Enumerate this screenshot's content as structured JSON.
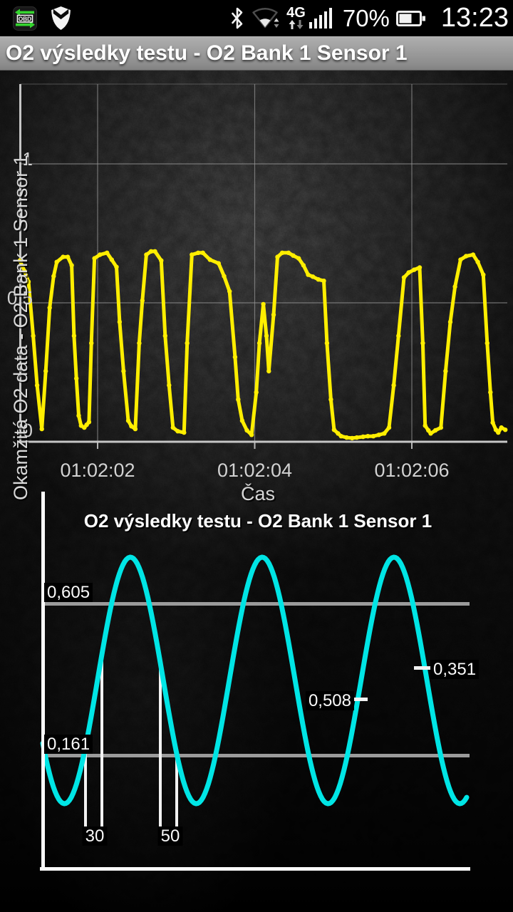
{
  "status_bar": {
    "time": "13:23",
    "battery_percent": "70%",
    "network_label": "4G",
    "icons": {
      "obd": "OBD",
      "shield": "shield",
      "bluetooth": "bluetooth",
      "wifi": "wifi-off-with-arrows",
      "signal": "signal-strength-5",
      "battery": "battery-70"
    }
  },
  "title_bar": {
    "title": "O2 výsledky testu - O2 Bank 1 Sensor 1"
  },
  "chart_data": [
    {
      "id": "instant-o2-chart",
      "type": "line",
      "title": "",
      "xlabel": "Čas",
      "ylabel": "Okamžitá O2 data - O2 Bank 1 Sensor 1",
      "x_ticks": [
        {
          "label": "01:02:02",
          "seconds": 2
        },
        {
          "label": "01:02:04",
          "seconds": 4
        },
        {
          "label": "01:02:06",
          "seconds": 6
        }
      ],
      "y_ticks": [
        {
          "label": "0",
          "value": 0
        },
        {
          "label": "0.5",
          "value": 0.5
        },
        {
          "label": "1",
          "value": 1
        }
      ],
      "xlim_seconds": [
        1.01,
        7.19
      ],
      "ylim": [
        0,
        1.29
      ],
      "grid": true,
      "series": [
        {
          "name": "Okamžitá O2 data - O2 Bank 1 Sensor 1",
          "color": "#ffee00",
          "marker": "circle",
          "points_t_v": [
            [
              1.01,
              0.652
            ],
            [
              1.07,
              0.614
            ],
            [
              1.12,
              0.576
            ],
            [
              1.18,
              0.381
            ],
            [
              1.23,
              0.203
            ],
            [
              1.29,
              0.046
            ],
            [
              1.34,
              0.254
            ],
            [
              1.39,
              0.482
            ],
            [
              1.44,
              0.596
            ],
            [
              1.48,
              0.647
            ],
            [
              1.56,
              0.665
            ],
            [
              1.62,
              0.665
            ],
            [
              1.67,
              0.635
            ],
            [
              1.7,
              0.381
            ],
            [
              1.73,
              0.228
            ],
            [
              1.76,
              0.094
            ],
            [
              1.79,
              0.058
            ],
            [
              1.83,
              0.051
            ],
            [
              1.86,
              0.061
            ],
            [
              1.89,
              0.071
            ],
            [
              1.92,
              0.355
            ],
            [
              1.96,
              0.66
            ],
            [
              2.03,
              0.673
            ],
            [
              2.12,
              0.68
            ],
            [
              2.18,
              0.655
            ],
            [
              2.24,
              0.629
            ],
            [
              2.28,
              0.431
            ],
            [
              2.33,
              0.254
            ],
            [
              2.39,
              0.076
            ],
            [
              2.43,
              0.056
            ],
            [
              2.48,
              0.046
            ],
            [
              2.53,
              0.355
            ],
            [
              2.57,
              0.508
            ],
            [
              2.62,
              0.673
            ],
            [
              2.68,
              0.685
            ],
            [
              2.73,
              0.685
            ],
            [
              2.81,
              0.652
            ],
            [
              2.86,
              0.381
            ],
            [
              2.91,
              0.203
            ],
            [
              2.96,
              0.051
            ],
            [
              3.02,
              0.038
            ],
            [
              3.1,
              0.033
            ],
            [
              3.14,
              0.355
            ],
            [
              3.2,
              0.673
            ],
            [
              3.28,
              0.68
            ],
            [
              3.34,
              0.68
            ],
            [
              3.43,
              0.655
            ],
            [
              3.54,
              0.642
            ],
            [
              3.61,
              0.596
            ],
            [
              3.68,
              0.541
            ],
            [
              3.75,
              0.305
            ],
            [
              3.79,
              0.152
            ],
            [
              3.84,
              0.076
            ],
            [
              3.9,
              0.041
            ],
            [
              3.96,
              0.025
            ],
            [
              4.02,
              0.178
            ],
            [
              4.06,
              0.355
            ],
            [
              4.11,
              0.495
            ],
            [
              4.15,
              0.381
            ],
            [
              4.18,
              0.254
            ],
            [
              4.24,
              0.457
            ],
            [
              4.29,
              0.665
            ],
            [
              4.35,
              0.68
            ],
            [
              4.43,
              0.68
            ],
            [
              4.49,
              0.67
            ],
            [
              4.56,
              0.66
            ],
            [
              4.62,
              0.635
            ],
            [
              4.68,
              0.601
            ],
            [
              4.74,
              0.594
            ],
            [
              4.81,
              0.584
            ],
            [
              4.88,
              0.579
            ],
            [
              4.92,
              0.355
            ],
            [
              4.97,
              0.152
            ],
            [
              5.01,
              0.043
            ],
            [
              5.06,
              0.03
            ],
            [
              5.1,
              0.02
            ],
            [
              5.17,
              0.015
            ],
            [
              5.24,
              0.013
            ],
            [
              5.3,
              0.015
            ],
            [
              5.38,
              0.018
            ],
            [
              5.44,
              0.02
            ],
            [
              5.51,
              0.02
            ],
            [
              5.58,
              0.025
            ],
            [
              5.65,
              0.03
            ],
            [
              5.71,
              0.051
            ],
            [
              5.77,
              0.203
            ],
            [
              5.83,
              0.381
            ],
            [
              5.9,
              0.591
            ],
            [
              5.96,
              0.609
            ],
            [
              6.03,
              0.619
            ],
            [
              6.1,
              0.627
            ],
            [
              6.14,
              0.355
            ],
            [
              6.17,
              0.058
            ],
            [
              6.21,
              0.041
            ],
            [
              6.24,
              0.03
            ],
            [
              6.3,
              0.041
            ],
            [
              6.37,
              0.051
            ],
            [
              6.43,
              0.254
            ],
            [
              6.49,
              0.431
            ],
            [
              6.55,
              0.558
            ],
            [
              6.62,
              0.655
            ],
            [
              6.69,
              0.668
            ],
            [
              6.78,
              0.673
            ],
            [
              6.84,
              0.647
            ],
            [
              6.91,
              0.601
            ],
            [
              6.96,
              0.355
            ],
            [
              7.0,
              0.178
            ],
            [
              7.03,
              0.069
            ],
            [
              7.07,
              0.043
            ],
            [
              7.1,
              0.033
            ],
            [
              7.14,
              0.051
            ],
            [
              7.19,
              0.043
            ]
          ]
        }
      ]
    },
    {
      "id": "o2-test-result-chart",
      "type": "line",
      "title": "O2 výsledky testu - O2 Bank 1 Sensor 1",
      "waveform": {
        "shape": "sine",
        "color": "#00e5e5",
        "cycles_visible": 3.2
      },
      "reference_lines": [
        {
          "label": "0,605"
        },
        {
          "label": "0,161"
        }
      ],
      "point_labels": [
        {
          "label": "0,508"
        },
        {
          "label": "0,351"
        }
      ],
      "interval_markers": [
        {
          "label": "30"
        },
        {
          "label": "50"
        }
      ]
    }
  ]
}
